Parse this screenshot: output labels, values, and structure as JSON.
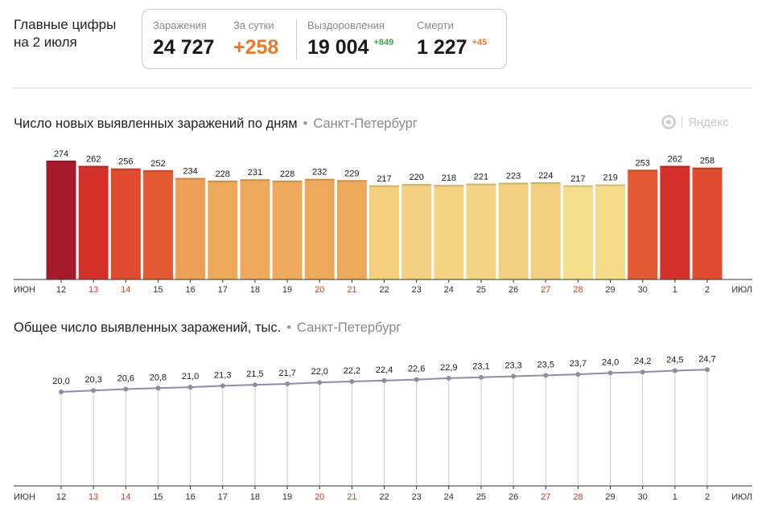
{
  "headline": {
    "line1": "Главные цифры",
    "line2": "на 2 июля"
  },
  "stats": {
    "infections": {
      "label": "Заражения",
      "value": "24 727"
    },
    "daily": {
      "label": "За сутки",
      "value": "+258"
    },
    "recovered": {
      "label": "Выздоровления",
      "value": "19 004",
      "delta": "+849"
    },
    "deaths": {
      "label": "Смерти",
      "value": "1 227",
      "delta": "+45"
    }
  },
  "colors": {
    "weekend_tick": "#d9391c",
    "tick": "#333333",
    "line": "#8a8fa8",
    "growth_up": "#3fa34d",
    "accent": "#ea7a2b"
  },
  "watermark": {
    "text": "Яндекс",
    "icon": "yandex-logo-icon"
  },
  "chart_data": [
    {
      "type": "bar",
      "title": "Число новых выявленных заражений по дням",
      "subtitle": "Санкт-Петербург",
      "axis_start_label": "ИЮН",
      "axis_end_label": "ИЮЛ",
      "categories": [
        "12",
        "13",
        "14",
        "15",
        "16",
        "17",
        "18",
        "19",
        "20",
        "21",
        "22",
        "23",
        "24",
        "25",
        "26",
        "27",
        "28",
        "29",
        "30",
        "1",
        "2"
      ],
      "weekend_categories": [
        "13",
        "14",
        "20",
        "21",
        "27",
        "28"
      ],
      "values": [
        274,
        262,
        256,
        252,
        234,
        228,
        231,
        228,
        232,
        229,
        217,
        220,
        218,
        221,
        223,
        224,
        217,
        219,
        253,
        262,
        258
      ],
      "labels": [
        "274",
        "262",
        "256",
        "252",
        "234",
        "228",
        "231",
        "228",
        "232",
        "229",
        "217",
        "220",
        "218",
        "221",
        "223",
        "224",
        "217",
        "219",
        "253",
        "262",
        "258"
      ],
      "bar_colors": [
        "#a51b2c",
        "#d3312a",
        "#e04a2e",
        "#e35a34",
        "#eca056",
        "#eda85a",
        "#eea95c",
        "#eea95c",
        "#eda85a",
        "#eda85a",
        "#f4d07e",
        "#f3cf82",
        "#f5d382",
        "#f4d384",
        "#f3cf82",
        "#f3d080",
        "#f6df8c",
        "#f5dc8a",
        "#e35a34",
        "#d3312a",
        "#e04a2e"
      ],
      "ylim": [
        0,
        280
      ]
    },
    {
      "type": "line",
      "title": "Общее число выявленных заражений, тыс.",
      "subtitle": "Санкт-Петербург",
      "axis_start_label": "ИЮН",
      "axis_end_label": "ИЮЛ",
      "categories": [
        "12",
        "13",
        "14",
        "15",
        "16",
        "17",
        "18",
        "19",
        "20",
        "21",
        "22",
        "23",
        "24",
        "25",
        "26",
        "27",
        "28",
        "29",
        "30",
        "1",
        "2"
      ],
      "weekend_categories": [
        "13",
        "14",
        "20",
        "21",
        "27",
        "28"
      ],
      "values": [
        20.0,
        20.3,
        20.6,
        20.8,
        21.0,
        21.3,
        21.5,
        21.7,
        22.0,
        22.2,
        22.4,
        22.6,
        22.9,
        23.1,
        23.3,
        23.5,
        23.7,
        24.0,
        24.2,
        24.5,
        24.7
      ],
      "labels": [
        "20,0",
        "20,3",
        "20,6",
        "20,8",
        "21,0",
        "21,3",
        "21,5",
        "21,7",
        "22,0",
        "22,2",
        "22,4",
        "22,6",
        "22,9",
        "23,1",
        "23,3",
        "23,5",
        "23,7",
        "24,0",
        "24,2",
        "24,5",
        "24,7"
      ],
      "ylim": [
        0,
        25
      ]
    }
  ]
}
